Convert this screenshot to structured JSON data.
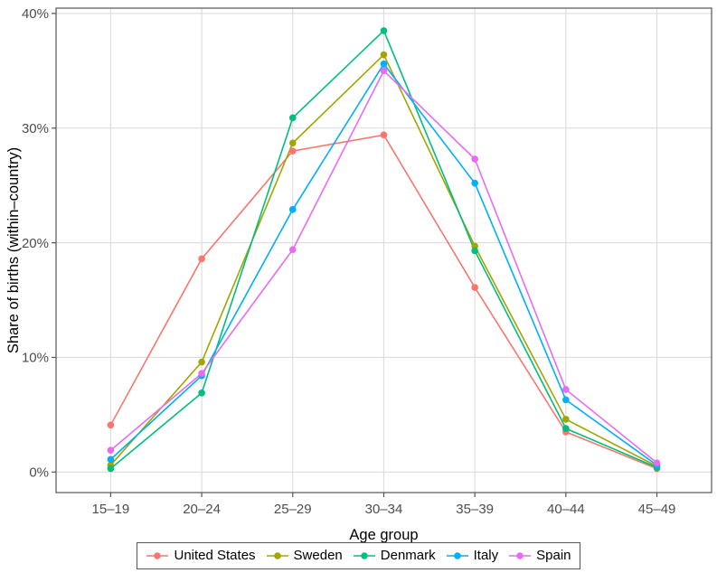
{
  "chart_data": {
    "type": "line",
    "title": "",
    "xlabel": "Age group",
    "ylabel": "Share of births (within–country)",
    "categories": [
      "15–19",
      "20–24",
      "25–29",
      "30–34",
      "35–39",
      "40–44",
      "45–49"
    ],
    "y_ticks": [
      0,
      10,
      20,
      30,
      40
    ],
    "y_tick_labels": [
      "0%",
      "10%",
      "20%",
      "30%",
      "40%"
    ],
    "ylim": [
      0,
      40
    ],
    "grid": "major",
    "legend_position": "bottom",
    "series": [
      {
        "name": "United States",
        "color": "#F8766D",
        "values": [
          4.1,
          18.6,
          28.0,
          29.4,
          16.1,
          3.5,
          0.3
        ]
      },
      {
        "name": "Sweden",
        "color": "#A3A500",
        "values": [
          0.6,
          9.6,
          28.7,
          36.4,
          19.7,
          4.6,
          0.5
        ]
      },
      {
        "name": "Denmark",
        "color": "#00BF7D",
        "values": [
          0.3,
          6.9,
          30.9,
          38.5,
          19.3,
          3.8,
          0.4
        ]
      },
      {
        "name": "Italy",
        "color": "#00B0F6",
        "values": [
          1.1,
          8.4,
          22.9,
          35.6,
          25.2,
          6.3,
          0.6
        ]
      },
      {
        "name": "Spain",
        "color": "#E76BF3",
        "values": [
          1.9,
          8.6,
          19.4,
          35.0,
          27.3,
          7.2,
          0.8
        ]
      }
    ]
  }
}
